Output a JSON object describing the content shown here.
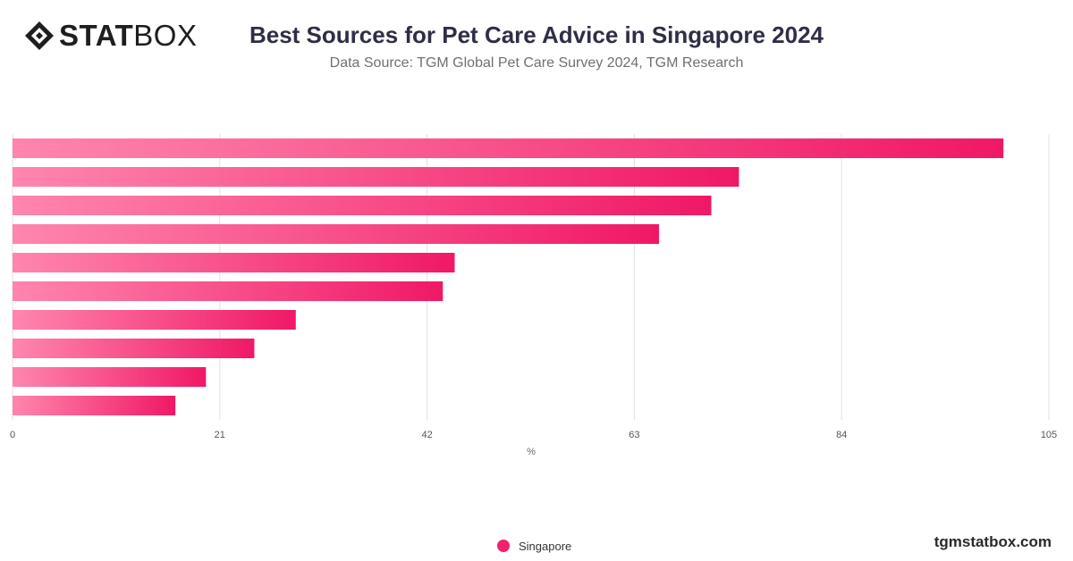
{
  "brand": {
    "logo_stat": "STAT",
    "logo_box": "BOX",
    "site": "tgmstatbox.com"
  },
  "colors": {
    "bar_start": "#ff86ae",
    "bar_end": "#f01866",
    "title": "#2f2e48",
    "grid": "#e0e0e0"
  },
  "chart_data": {
    "type": "bar",
    "orientation": "horizontal",
    "title": "Best Sources for Pet Care Advice in Singapore 2024",
    "subtitle": "Data Source: TGM Global Pet Care Survey 2024, TGM Research",
    "xlabel": "%",
    "xlim": [
      0,
      105
    ],
    "xticks": [
      0,
      21,
      42,
      63,
      84,
      105
    ],
    "grid": true,
    "legend_position": "bottom-center",
    "series": [
      {
        "name": "Singapore",
        "values": [
          100.4,
          73.6,
          70.8,
          65.5,
          44.8,
          43.6,
          28.7,
          24.5,
          19.6,
          16.5
        ]
      }
    ]
  }
}
